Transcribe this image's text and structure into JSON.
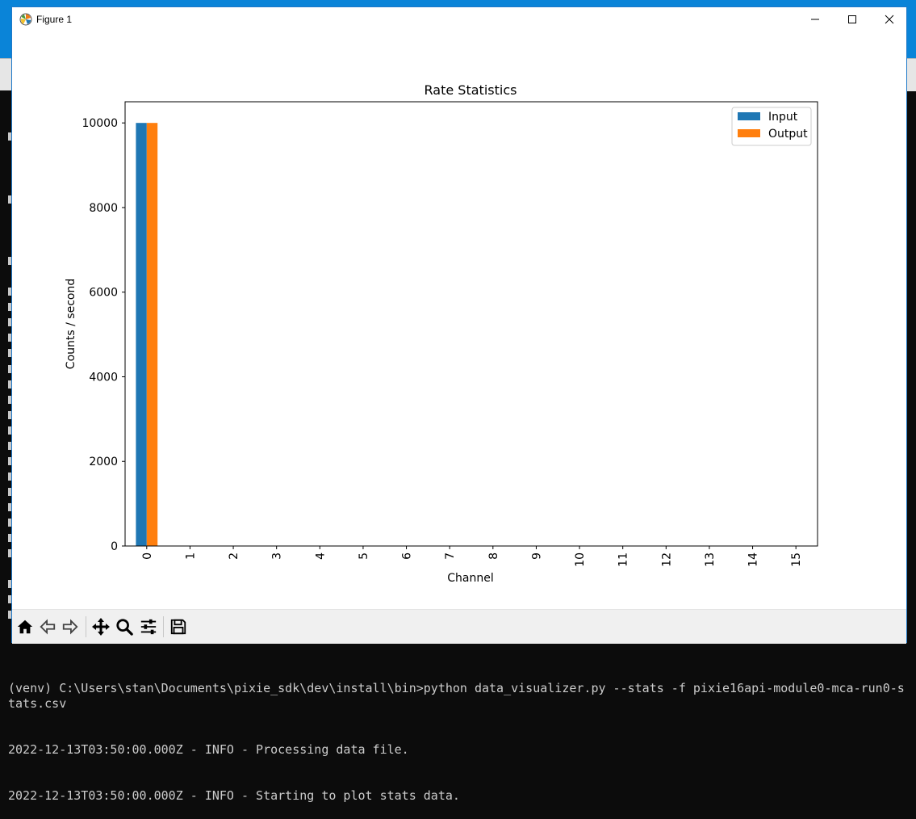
{
  "window": {
    "title": "Figure 1",
    "controls": {
      "minimize": "minimize",
      "maximize": "maximize",
      "close": "close"
    }
  },
  "toolbar": {
    "buttons": [
      {
        "name": "home-icon",
        "tooltip": "Home"
      },
      {
        "name": "back-icon",
        "tooltip": "Back"
      },
      {
        "name": "forward-icon",
        "tooltip": "Forward"
      },
      {
        "name": "pan-icon",
        "tooltip": "Pan"
      },
      {
        "name": "zoom-icon",
        "tooltip": "Zoom"
      },
      {
        "name": "configure-subplots-icon",
        "tooltip": "Configure subplots"
      },
      {
        "name": "save-icon",
        "tooltip": "Save"
      }
    ]
  },
  "console": {
    "lines": [
      "(venv) C:\\Users\\stan\\Documents\\pixie_sdk\\dev\\install\\bin>python data_visualizer.py --stats -f pixie16api-module0-mca-run0-stats.csv",
      "2022-12-13T03:50:00.000Z - INFO - Processing data file.",
      "2022-12-13T03:50:00.000Z - INFO - Starting to plot stats data."
    ]
  },
  "colors": {
    "input": "#1f77b4",
    "output": "#ff7f0e"
  },
  "chart_data": {
    "type": "bar",
    "title": "Rate Statistics",
    "xlabel": "Channel",
    "ylabel": "Counts / second",
    "categories": [
      "0",
      "1",
      "2",
      "3",
      "4",
      "5",
      "6",
      "7",
      "8",
      "9",
      "10",
      "11",
      "12",
      "13",
      "14",
      "15"
    ],
    "series": [
      {
        "name": "Input",
        "color": "#1f77b4",
        "values": [
          10000,
          0,
          0,
          0,
          0,
          0,
          0,
          0,
          0,
          0,
          0,
          0,
          0,
          0,
          0,
          0
        ]
      },
      {
        "name": "Output",
        "color": "#ff7f0e",
        "values": [
          10000,
          0,
          0,
          0,
          0,
          0,
          0,
          0,
          0,
          0,
          0,
          0,
          0,
          0,
          0,
          0
        ]
      }
    ],
    "yticks": [
      0,
      2000,
      4000,
      6000,
      8000,
      10000
    ],
    "ylim": [
      0,
      10500
    ],
    "grid": false,
    "legend": "top-right",
    "xtick_rotation": "vertical"
  }
}
